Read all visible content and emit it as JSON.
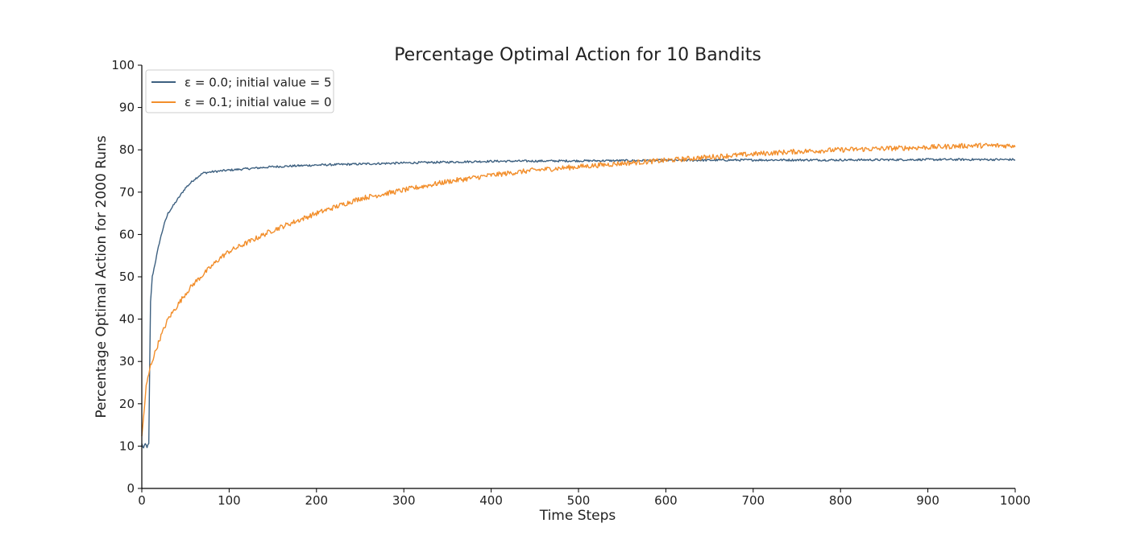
{
  "chart_data": {
    "type": "line",
    "title": "Percentage Optimal Action for 10 Bandits",
    "xlabel": "Time Steps",
    "ylabel": "Percentage Optimal Action for 2000 Runs",
    "xlim": [
      0,
      1000
    ],
    "ylim": [
      0,
      100
    ],
    "x_ticks": [
      0,
      100,
      200,
      300,
      400,
      500,
      600,
      700,
      800,
      900,
      1000
    ],
    "y_ticks": [
      0,
      10,
      20,
      30,
      40,
      50,
      60,
      70,
      80,
      90,
      100
    ],
    "grid": false,
    "legend_position": "top-left",
    "series": [
      {
        "name": "ε = 0.0; initial value = 5",
        "color": "#3d6080",
        "noise": 0.25,
        "x": [
          0,
          2,
          4,
          6,
          8,
          9,
          10,
          12,
          15,
          20,
          25,
          30,
          40,
          50,
          60,
          70,
          80,
          100,
          150,
          200,
          300,
          400,
          500,
          600,
          700,
          800,
          900,
          1000
        ],
        "y": [
          10.5,
          9.5,
          10.5,
          9.8,
          10.5,
          28,
          44,
          50,
          53,
          58,
          62,
          65,
          68,
          71,
          73,
          74.5,
          74.8,
          75.2,
          76,
          76.4,
          76.9,
          77.3,
          77.4,
          77.5,
          77.6,
          77.6,
          77.7,
          77.7
        ]
      },
      {
        "name": "ε = 0.1; initial value = 0",
        "color": "#f28e2b",
        "noise": 0.6,
        "x": [
          0,
          5,
          10,
          20,
          30,
          40,
          50,
          60,
          70,
          80,
          90,
          100,
          125,
          150,
          175,
          200,
          250,
          300,
          350,
          400,
          450,
          500,
          550,
          600,
          650,
          700,
          750,
          800,
          850,
          900,
          950,
          1000
        ],
        "y": [
          12,
          24,
          29,
          35,
          40,
          43,
          46,
          48.5,
          50.5,
          52.5,
          54.5,
          56,
          58.5,
          61,
          63,
          65,
          68.5,
          70.5,
          72.5,
          74,
          75.2,
          76,
          76.8,
          77.5,
          78.3,
          79,
          79.6,
          80,
          80.3,
          80.6,
          81,
          81
        ]
      }
    ]
  }
}
